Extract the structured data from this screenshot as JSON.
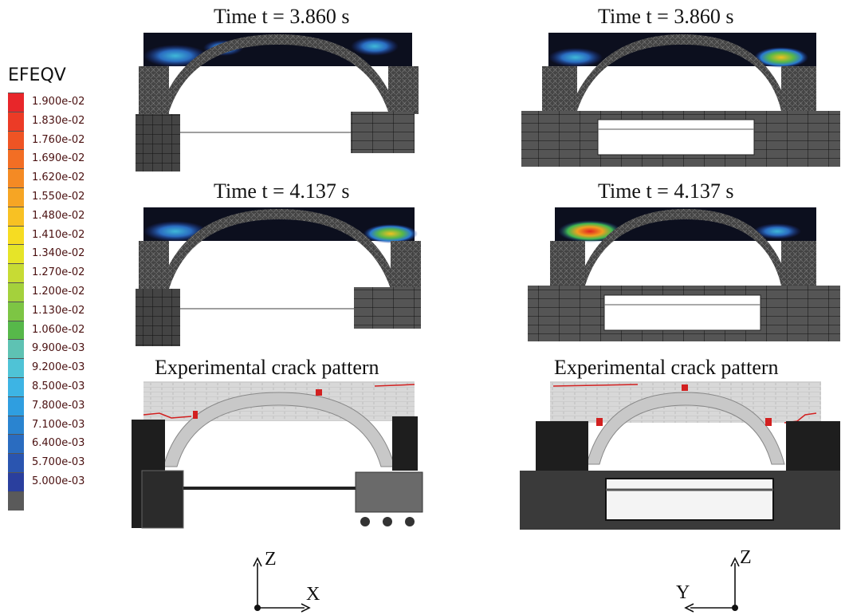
{
  "legend": {
    "title": "EFEQV",
    "entries": [
      {
        "label": "1.900e-02",
        "color": "#e8262a"
      },
      {
        "label": "1.830e-02",
        "color": "#ec3b26"
      },
      {
        "label": "1.760e-02",
        "color": "#ef5424"
      },
      {
        "label": "1.690e-02",
        "color": "#f26e24"
      },
      {
        "label": "1.620e-02",
        "color": "#f48a24"
      },
      {
        "label": "1.550e-02",
        "color": "#f6a524"
      },
      {
        "label": "1.480e-02",
        "color": "#f8c123"
      },
      {
        "label": "1.410e-02",
        "color": "#f6dc22"
      },
      {
        "label": "1.340e-02",
        "color": "#e6e428"
      },
      {
        "label": "1.270e-02",
        "color": "#c7db34"
      },
      {
        "label": "1.200e-02",
        "color": "#a4d13c"
      },
      {
        "label": "1.130e-02",
        "color": "#7dc544"
      },
      {
        "label": "1.060e-02",
        "color": "#57b84a"
      },
      {
        "label": "9.900e-03",
        "color": "#5ec2b3"
      },
      {
        "label": "9.200e-03",
        "color": "#4fc3d6"
      },
      {
        "label": "8.500e-03",
        "color": "#3db4e4"
      },
      {
        "label": "7.800e-03",
        "color": "#2f9ee0"
      },
      {
        "label": "7.100e-03",
        "color": "#2a84d0"
      },
      {
        "label": "6.400e-03",
        "color": "#2a6cc0"
      },
      {
        "label": "5.700e-03",
        "color": "#2a55b0"
      },
      {
        "label": "5.000e-03",
        "color": "#2a3f9e"
      },
      {
        "label": "",
        "color": "#5a5a5a"
      }
    ]
  },
  "panels": {
    "left_top_title": "Time t = 3.860 s",
    "right_top_title": "Time t = 3.860 s",
    "left_mid_title": "Time t = 4.137 s",
    "right_mid_title": "Time t = 4.137 s",
    "left_bottom_title": "Experimental crack pattern",
    "right_bottom_title": "Experimental crack pattern"
  },
  "axes": {
    "left": {
      "vertical": "Z",
      "horizontal": "X"
    },
    "right": {
      "vertical": "Z",
      "horizontal": "Y"
    }
  },
  "colors": {
    "mesh_gray": "#555555",
    "photo_dark": "#1e1e1e",
    "crack_red": "#d22020"
  }
}
